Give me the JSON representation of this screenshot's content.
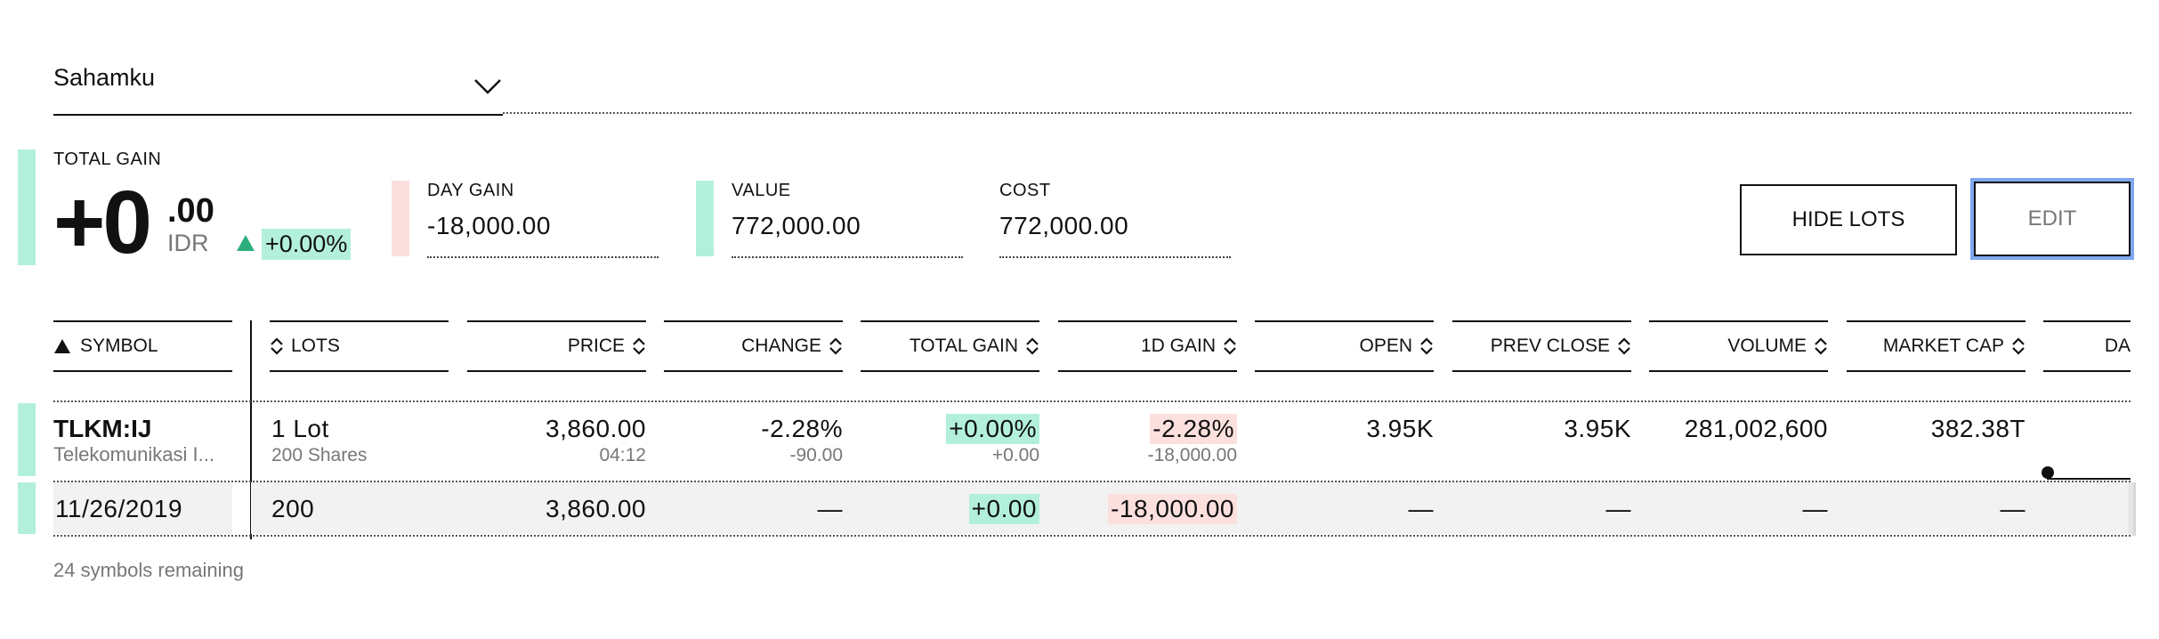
{
  "portfolio": {
    "name": "Sahamku",
    "chevron_icon": "chevron-down-icon"
  },
  "summary": {
    "total_gain_label": "TOTAL GAIN",
    "total_gain_int": "+0",
    "total_gain_dec": ".00",
    "currency": "IDR",
    "total_gain_pct": "+0.00%",
    "day_gain_label": "DAY GAIN",
    "day_gain_value": "-18,000.00",
    "value_label": "VALUE",
    "value_value": "772,000.00",
    "cost_label": "COST",
    "cost_value": "772,000.00"
  },
  "buttons": {
    "hide_lots": "HIDE LOTS",
    "edit": "EDIT"
  },
  "table": {
    "headers": {
      "symbol": "SYMBOL",
      "lots": "LOTS",
      "price": "PRICE",
      "change": "CHANGE",
      "total_gain": "TOTAL GAIN",
      "day_gain": "1D GAIN",
      "open": "OPEN",
      "prev_close": "PREV CLOSE",
      "volume": "VOLUME",
      "market_cap": "MARKET CAP",
      "day_range": "DA"
    },
    "holding": {
      "symbol": "TLKM:IJ",
      "name": "Telekomunikasi I...",
      "lots": "1 Lot",
      "shares": "200 Shares",
      "price": "3,860.00",
      "time": "04:12",
      "change_pct": "-2.28%",
      "change_abs": "-90.00",
      "total_gain_pct": "+0.00%",
      "total_gain_abs": "+0.00",
      "day_gain_pct": "-2.28%",
      "day_gain_abs": "-18,000.00",
      "open": "3.95K",
      "prev_close": "3.95K",
      "volume": "281,002,600",
      "market_cap": "382.38T"
    },
    "lot_row": {
      "date": "11/26/2019",
      "lots": "200",
      "price": "3,860.00",
      "change": "—",
      "total_gain": "+0.00",
      "day_gain": "-18,000.00",
      "open": "—",
      "prev_close": "—",
      "volume": "—",
      "market_cap": "—"
    }
  },
  "footer": {
    "remaining": "24 symbols remaining"
  },
  "colors": {
    "green": "#b3f0dc",
    "red": "#fbe0de",
    "focus": "#7fa8ef",
    "arrow_green": "#2eae7c"
  }
}
